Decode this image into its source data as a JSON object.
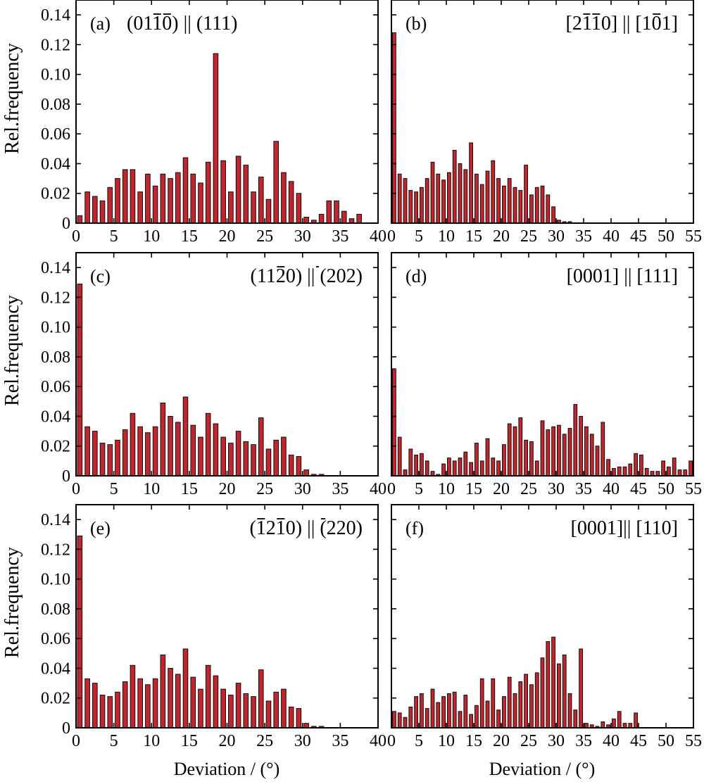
{
  "figure": {
    "ylabel": "Rel.frequency",
    "xlabel": "Deviation / (°)",
    "bar_color": "#c0262d"
  },
  "chart_data": [
    {
      "panel": "a",
      "type": "bar",
      "tag": "(a)",
      "title_text": "(0110) || (111)",
      "overlines": [
        3,
        4
      ],
      "title_align": "left",
      "xlim": [
        0,
        40
      ],
      "ylim": [
        0,
        0.15
      ],
      "bin_width": 1,
      "xticks": [
        0,
        5,
        10,
        15,
        20,
        25,
        30,
        35,
        40
      ],
      "yticks": [
        0.14,
        0.12,
        0.1,
        0.08,
        0.06,
        0.04,
        0.02,
        0
      ],
      "ytick_labels": [
        "0.14",
        "0.12",
        "0.10",
        "0.08",
        "0.06",
        "0.04",
        "0.02",
        "0"
      ],
      "show_ytick_labels": true,
      "show_xlabel": false,
      "values": [
        0.005,
        0.021,
        0.018,
        0.015,
        0.024,
        0.03,
        0.036,
        0.036,
        0.021,
        0.033,
        0.025,
        0.033,
        0.03,
        0.034,
        0.044,
        0.033,
        0.027,
        0.041,
        0.114,
        0.042,
        0.021,
        0.045,
        0.039,
        0.021,
        0.031,
        0.016,
        0.055,
        0.034,
        0.028,
        0.02,
        0.004,
        0.002,
        0.006,
        0.015,
        0.015,
        0.008,
        0.003,
        0.006,
        0,
        0
      ]
    },
    {
      "panel": "b",
      "type": "bar",
      "tag": "(b)",
      "title_text": "[2110] || [101]",
      "overlines": [
        2,
        3,
        12
      ],
      "title_align": "right",
      "xlim": [
        0,
        55
      ],
      "ylim": [
        0,
        0.15
      ],
      "bin_width": 1,
      "xticks": [
        0,
        5,
        10,
        15,
        20,
        25,
        30,
        35,
        40,
        45,
        50,
        55
      ],
      "yticks": [
        0.14,
        0.12,
        0.1,
        0.08,
        0.06,
        0.04,
        0.02,
        0
      ],
      "ytick_labels": [
        "0.14",
        "0.12",
        "0.10",
        "0.08",
        "0.06",
        "0.04",
        "0.02",
        "0"
      ],
      "show_ytick_labels": false,
      "show_xlabel": false,
      "values": [
        0.128,
        0.033,
        0.03,
        0.022,
        0.021,
        0.024,
        0.03,
        0.041,
        0.033,
        0.029,
        0.034,
        0.049,
        0.04,
        0.036,
        0.054,
        0.033,
        0.026,
        0.035,
        0.042,
        0.03,
        0.025,
        0.03,
        0.024,
        0.022,
        0.039,
        0.019,
        0.024,
        0.025,
        0.019,
        0.011,
        0.002,
        0.001,
        0.001,
        0,
        0,
        0,
        0,
        0,
        0,
        0,
        0,
        0,
        0,
        0,
        0,
        0,
        0,
        0,
        0,
        0,
        0,
        0,
        0,
        0,
        0
      ]
    },
    {
      "panel": "c",
      "type": "bar",
      "tag": "(c)",
      "title_text": "(1120) || (202)",
      "overlines": [
        3,
        9
      ],
      "title_align": "right",
      "xlim": [
        0,
        40
      ],
      "ylim": [
        0,
        0.15
      ],
      "bin_width": 1,
      "xticks": [
        0,
        5,
        10,
        15,
        20,
        25,
        30,
        35,
        40
      ],
      "yticks": [
        0.14,
        0.12,
        0.1,
        0.08,
        0.06,
        0.04,
        0.02,
        0
      ],
      "ytick_labels": [
        "0.14",
        "0.12",
        "0.10",
        "0.08",
        "0.06",
        "0.04",
        "0.02",
        "0"
      ],
      "show_ytick_labels": true,
      "show_xlabel": false,
      "values": [
        0.129,
        0.033,
        0.03,
        0.022,
        0.021,
        0.024,
        0.031,
        0.042,
        0.033,
        0.029,
        0.033,
        0.049,
        0.04,
        0.036,
        0.053,
        0.034,
        0.026,
        0.042,
        0.035,
        0.026,
        0.022,
        0.03,
        0.023,
        0.021,
        0.039,
        0.018,
        0.024,
        0.026,
        0.014,
        0.013,
        0.004,
        0.001,
        0.001,
        0,
        0,
        0,
        0,
        0,
        0,
        0
      ]
    },
    {
      "panel": "d",
      "type": "bar",
      "tag": "(d)",
      "title_text": "[0001] || [111]",
      "overlines": [],
      "title_align": "right",
      "xlim": [
        0,
        55
      ],
      "ylim": [
        0,
        0.15
      ],
      "bin_width": 1,
      "xticks": [
        0,
        5,
        10,
        15,
        20,
        25,
        30,
        35,
        40,
        45,
        50,
        55
      ],
      "yticks": [
        0.14,
        0.12,
        0.1,
        0.08,
        0.06,
        0.04,
        0.02,
        0
      ],
      "ytick_labels": [
        "0.14",
        "0.12",
        "0.10",
        "0.08",
        "0.06",
        "0.04",
        "0.02",
        "0"
      ],
      "show_ytick_labels": false,
      "show_xlabel": false,
      "values": [
        0.072,
        0.026,
        0.004,
        0.018,
        0.014,
        0.015,
        0.01,
        0.003,
        0.001,
        0.008,
        0.012,
        0.01,
        0.012,
        0.016,
        0.009,
        0.022,
        0.01,
        0.025,
        0.012,
        0.01,
        0.021,
        0.035,
        0.033,
        0.039,
        0.024,
        0.023,
        0.01,
        0.037,
        0.031,
        0.033,
        0.034,
        0.028,
        0.032,
        0.048,
        0.04,
        0.033,
        0.028,
        0.02,
        0.036,
        0.011,
        0.005,
        0.006,
        0.006,
        0.008,
        0.015,
        0.014,
        0.005,
        0.003,
        0.003,
        0.01,
        0.006,
        0.012,
        0.004,
        0.004,
        0.01
      ]
    },
    {
      "panel": "e",
      "type": "bar",
      "tag": "(e)",
      "title_text": "(1210) || (220)",
      "overlines": [
        1,
        3,
        10
      ],
      "title_align": "right",
      "xlim": [
        0,
        40
      ],
      "ylim": [
        0,
        0.15
      ],
      "bin_width": 1,
      "xticks": [
        0,
        5,
        10,
        15,
        20,
        25,
        30,
        35,
        40
      ],
      "yticks": [
        0.14,
        0.12,
        0.1,
        0.08,
        0.06,
        0.04,
        0.02,
        0
      ],
      "ytick_labels": [
        "0.14",
        "0.12",
        "0.10",
        "0.08",
        "0.06",
        "0.04",
        "0.02",
        "0"
      ],
      "show_ytick_labels": true,
      "show_xlabel": true,
      "values": [
        0.129,
        0.033,
        0.03,
        0.022,
        0.021,
        0.024,
        0.031,
        0.042,
        0.033,
        0.029,
        0.033,
        0.049,
        0.04,
        0.036,
        0.053,
        0.034,
        0.026,
        0.042,
        0.035,
        0.026,
        0.022,
        0.03,
        0.023,
        0.021,
        0.039,
        0.018,
        0.024,
        0.026,
        0.014,
        0.013,
        0.003,
        0.001,
        0.001,
        0,
        0,
        0,
        0,
        0,
        0,
        0
      ]
    },
    {
      "panel": "f",
      "type": "bar",
      "tag": "(f)",
      "title_text": "[0001]|| [110]",
      "overlines": [],
      "title_align": "right",
      "xlim": [
        0,
        55
      ],
      "ylim": [
        0,
        0.15
      ],
      "bin_width": 1,
      "xticks": [
        0,
        5,
        10,
        15,
        20,
        25,
        30,
        35,
        40,
        45,
        50,
        55
      ],
      "yticks": [
        0.14,
        0.12,
        0.1,
        0.08,
        0.06,
        0.04,
        0.02,
        0
      ],
      "ytick_labels": [
        "0.14",
        "0.12",
        "0.10",
        "0.08",
        "0.06",
        "0.04",
        "0.02",
        "0"
      ],
      "show_ytick_labels": false,
      "show_xlabel": true,
      "values": [
        0.011,
        0.01,
        0.007,
        0.014,
        0.021,
        0.023,
        0.013,
        0.026,
        0.017,
        0.021,
        0.023,
        0.024,
        0.011,
        0.022,
        0.009,
        0.015,
        0.033,
        0.018,
        0.033,
        0.012,
        0.021,
        0.034,
        0.023,
        0.031,
        0.036,
        0.029,
        0.037,
        0.047,
        0.058,
        0.061,
        0.043,
        0.049,
        0.023,
        0.012,
        0.053,
        0.003,
        0.002,
        0.001,
        0.004,
        0.002,
        0.006,
        0.011,
        0.003,
        0.003,
        0.01,
        0,
        0,
        0,
        0,
        0,
        0,
        0,
        0,
        0,
        0
      ]
    }
  ]
}
